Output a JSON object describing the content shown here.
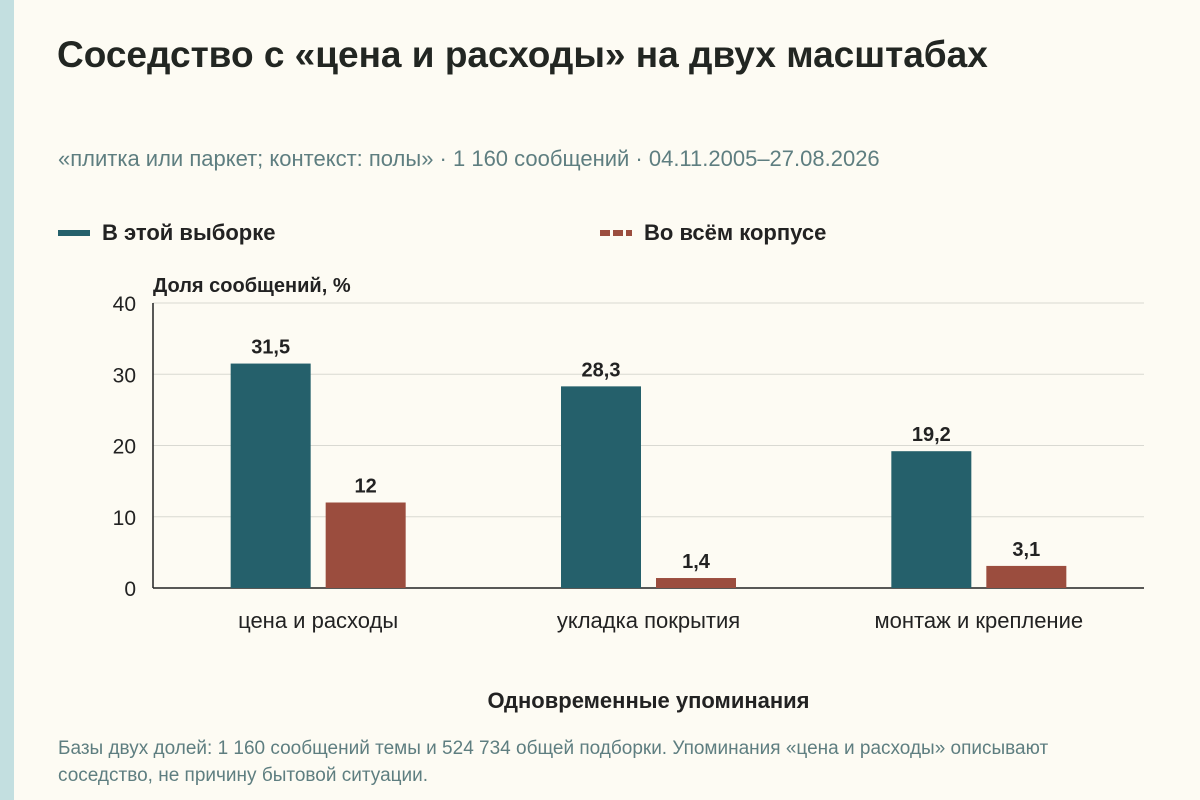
{
  "title": "Соседство с «цена и расходы» на двух масштабах",
  "subtitle": "«плитка или паркет; контекст: полы» · 1 160 сообщений · 04.11.2005–27.08.2026",
  "legend": [
    {
      "label": "В этой выборке",
      "color": "#25606b",
      "style": "solid"
    },
    {
      "label": "Во всём корпусе",
      "color": "#9b4d3e",
      "style": "dashed"
    }
  ],
  "footnote": "Базы двух долей: 1 160 сообщений темы и 524 734 общей подборки. Упоминания «цена и расходы» описывают соседство, не причину бытовой ситуации.",
  "chart_data": {
    "type": "bar",
    "ylabel": "Доля сообщений, %",
    "xlabel": "Одновременные упоминания",
    "ylim": [
      0,
      40
    ],
    "yticks": [
      0,
      10,
      20,
      30,
      40
    ],
    "grid": true,
    "legend_position": "top",
    "categories": [
      "цена и расходы",
      "укладка покрытия",
      "монтаж и крепление"
    ],
    "series": [
      {
        "name": "В этой выборке",
        "values": [
          31.5,
          28.3,
          19.2
        ],
        "labels": [
          "31,5",
          "28,3",
          "19,2"
        ],
        "color": "#25606b"
      },
      {
        "name": "Во всём корпусе",
        "values": [
          12,
          1.4,
          3.1
        ],
        "labels": [
          "12",
          "1,4",
          "3,1"
        ],
        "color": "#9b4d3e"
      }
    ]
  }
}
